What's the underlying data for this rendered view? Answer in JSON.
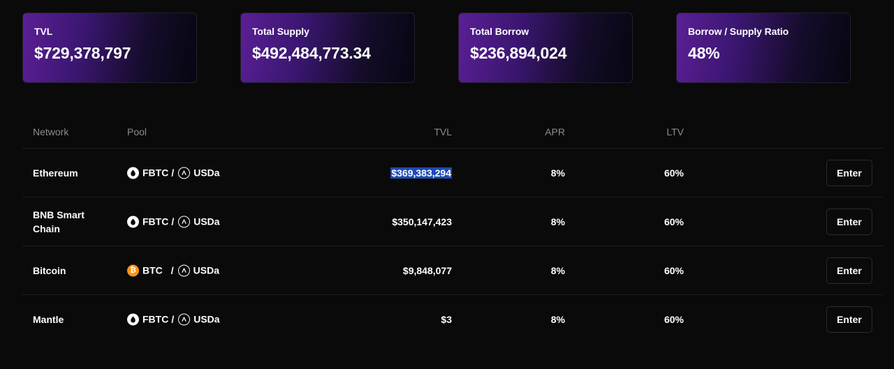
{
  "stats": [
    {
      "label": "TVL",
      "value": "$729,378,797"
    },
    {
      "label": "Total Supply",
      "value": "$492,484,773.34"
    },
    {
      "label": "Total Borrow",
      "value": "$236,894,024"
    },
    {
      "label": "Borrow / Supply Ratio",
      "value": "48%"
    }
  ],
  "table": {
    "headers": {
      "network": "Network",
      "pool": "Pool",
      "tvl": "TVL",
      "apr": "APR",
      "ltv": "LTV"
    },
    "rows": [
      {
        "network": "Ethereum",
        "asset": "FBTC",
        "asset_icon": "fbtc-icon",
        "separator": "/",
        "quote": "USDa",
        "quote_icon": "usda-icon",
        "tvl": "$369,383,294",
        "tvl_selected": true,
        "apr": "8%",
        "ltv": "60%",
        "action": "Enter"
      },
      {
        "network": "BNB Smart Chain",
        "asset": "FBTC",
        "asset_icon": "fbtc-icon",
        "separator": "/",
        "quote": "USDa",
        "quote_icon": "usda-icon",
        "tvl": "$350,147,423",
        "apr": "8%",
        "ltv": "60%",
        "action": "Enter"
      },
      {
        "network": "Bitcoin",
        "asset": "BTC",
        "asset_icon": "bitcoin-icon",
        "separator": "/",
        "quote": "USDa",
        "quote_icon": "usda-icon",
        "tvl": "$9,848,077",
        "apr": "8%",
        "ltv": "60%",
        "action": "Enter"
      },
      {
        "network": "Mantle",
        "asset": "FBTC",
        "asset_icon": "fbtc-icon",
        "separator": "/",
        "quote": "USDa",
        "quote_icon": "usda-icon",
        "tvl": "$3",
        "apr": "8%",
        "ltv": "60%",
        "action": "Enter"
      }
    ]
  },
  "colors": {
    "background": "#0a0a0b",
    "card_gradient_start": "#5b1f96",
    "card_gradient_end": "#060711",
    "selection": "#1f4ab5",
    "bitcoin": "#f7931a"
  }
}
